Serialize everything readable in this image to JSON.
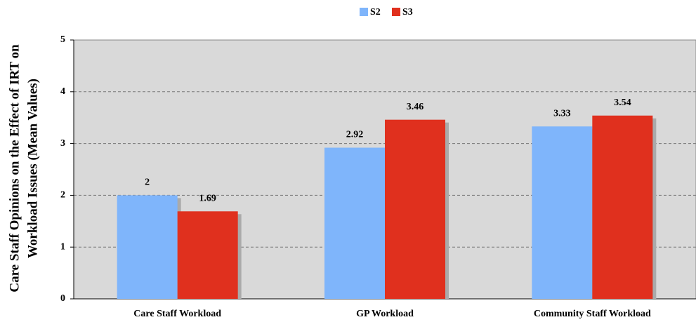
{
  "chart_data": {
    "type": "bar",
    "y_label_lines": [
      "Care Staff Opinions on the Effect of IRT on",
      "Workload Issues (Mean Values)"
    ],
    "categories": [
      "Care Staff Workload",
      "GP Workload",
      "Community Staff Workload"
    ],
    "series": [
      {
        "name": "S2",
        "color": "#7fb5fb",
        "values": [
          2,
          2.92,
          3.33
        ]
      },
      {
        "name": "S3",
        "color": "#e0301e",
        "values": [
          1.69,
          3.46,
          3.54
        ]
      }
    ],
    "ylim": [
      0,
      5
    ],
    "yticks": [
      0,
      1,
      2,
      3,
      4,
      5
    ],
    "grid": true,
    "legend": "top"
  }
}
